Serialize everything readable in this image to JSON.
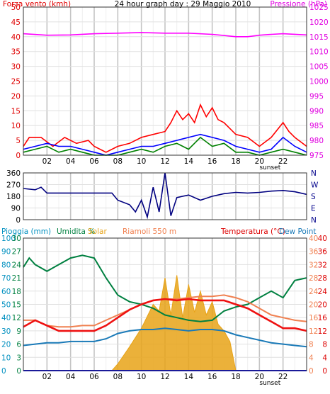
{
  "chart_data": [
    {
      "id": "wind-pressure",
      "type": "line",
      "title": "24 hour graph day : 29 Maggio 2010",
      "left_axis_label": "Forza vento (kmh)",
      "right_axis_label": "Pressione (hPa)",
      "ylim_left": [
        0,
        50
      ],
      "ylim_right": [
        975,
        1025
      ],
      "left_ticks": [
        0,
        5,
        10,
        15,
        20,
        25,
        30,
        35,
        40,
        45,
        50
      ],
      "right_ticks": [
        975,
        980,
        985,
        990,
        995,
        1000,
        1005,
        1010,
        1015,
        1020,
        1025
      ],
      "x_ticks": [
        "02",
        "04",
        "06",
        "08",
        "10",
        "12",
        "14",
        "16",
        "18",
        "20",
        "22"
      ],
      "x_range_hours": [
        0,
        24
      ],
      "annotation": "sunset",
      "annotation_hour": 20.9,
      "series": [
        {
          "axis": "right",
          "color": "#ff00ff",
          "x": [
            0,
            2,
            4,
            6,
            8,
            10,
            12,
            14,
            16,
            17,
            18,
            19,
            20,
            21,
            22,
            24
          ],
          "values": [
            1016,
            1015.5,
            1015.6,
            1016,
            1016.2,
            1016.4,
            1016.2,
            1016.2,
            1015.8,
            1015.4,
            1015,
            1015,
            1015.5,
            1015.8,
            1016,
            1015.6
          ]
        },
        {
          "axis": "left",
          "color": "#ff0000",
          "x": [
            0,
            0.5,
            1.5,
            2.5,
            3.5,
            4.5,
            5.5,
            6,
            7,
            8,
            9,
            10,
            11,
            12,
            12.5,
            13,
            13.5,
            14,
            14.5,
            15,
            15.5,
            16,
            16.5,
            17,
            17.5,
            18,
            19,
            20,
            21,
            22,
            22.5,
            23,
            24
          ],
          "values": [
            3,
            6,
            6,
            3,
            6,
            4,
            5,
            3,
            1,
            3,
            4,
            6,
            7,
            8,
            11,
            15,
            12,
            14,
            11,
            17,
            13,
            16,
            12,
            11,
            9,
            7,
            6,
            3,
            6,
            11,
            8,
            6,
            3
          ]
        },
        {
          "axis": "left",
          "color": "#0000ff",
          "x": [
            0,
            1,
            2,
            3,
            4,
            5,
            6,
            7,
            8,
            9,
            10,
            11,
            12,
            13,
            14,
            15,
            16,
            17,
            18,
            19,
            20,
            21,
            22,
            23,
            24
          ],
          "values": [
            2,
            3,
            4,
            3,
            3,
            2,
            1,
            0,
            1,
            2,
            3,
            3,
            4,
            5,
            6,
            7,
            6,
            5,
            3,
            2,
            1,
            2,
            6,
            3,
            1
          ]
        },
        {
          "axis": "left",
          "color": "#008000",
          "x": [
            0,
            1,
            2,
            3,
            4,
            5,
            6,
            7,
            8,
            9,
            10,
            11,
            12,
            13,
            14,
            15,
            16,
            17,
            18,
            19,
            20,
            21,
            22,
            23,
            24
          ],
          "values": [
            1,
            2,
            3,
            1,
            2,
            1,
            0,
            0,
            0,
            1,
            2,
            1,
            3,
            4,
            2,
            6,
            3,
            4,
            1,
            1,
            0,
            1,
            2,
            1,
            0
          ]
        }
      ]
    },
    {
      "id": "wind-direction",
      "type": "line",
      "left_ticks": [
        0,
        90,
        180,
        270,
        360
      ],
      "right_labels": [
        "N",
        "W",
        "S",
        "E",
        "N"
      ],
      "ylim": [
        0,
        360
      ],
      "x_range_hours": [
        0,
        24
      ],
      "series": [
        {
          "color": "#000080",
          "x": [
            0,
            1,
            1.5,
            2,
            3,
            4,
            5,
            6,
            7,
            7.5,
            8,
            9,
            9.5,
            10,
            10.5,
            11,
            11.5,
            12,
            12.5,
            13,
            14,
            15,
            16,
            17,
            18,
            19,
            20,
            21,
            22,
            23,
            24
          ],
          "values": [
            240,
            230,
            250,
            205,
            205,
            205,
            205,
            205,
            205,
            205,
            150,
            115,
            60,
            150,
            20,
            250,
            60,
            360,
            30,
            170,
            190,
            150,
            180,
            200,
            210,
            205,
            210,
            220,
            225,
            215,
            195
          ]
        }
      ]
    },
    {
      "id": "rain-temp-solar",
      "type": "line",
      "legend": [
        "Pioggia (mm)",
        "Umidita %",
        "Solar",
        "Riamoli 550 m",
        "Temperatura (°C)",
        "Dew Point"
      ],
      "left_ticks_rain": [
        0,
        10,
        20,
        30,
        40,
        50,
        60,
        70,
        80,
        90,
        100
      ],
      "left_ticks_humidity": [
        0,
        3,
        6,
        9,
        12,
        15,
        18,
        21,
        24,
        27,
        30
      ],
      "right_ticks_temp_inner": [
        0,
        4,
        8,
        12,
        16,
        20,
        24,
        28,
        32,
        36,
        40
      ],
      "right_ticks_temp_outer": [
        0,
        4,
        8,
        12,
        16,
        20,
        24,
        28,
        32,
        36,
        40
      ],
      "ylim": [
        0,
        100
      ],
      "x_ticks": [
        "02",
        "04",
        "06",
        "08",
        "10",
        "12",
        "14",
        "16",
        "18",
        "20",
        "22"
      ],
      "x_range_hours": [
        0,
        24
      ],
      "annotation": "sunset",
      "annotation_hour": 20.9,
      "series": [
        {
          "name": "Solar",
          "type": "area",
          "color": "#e8a317",
          "x": [
            0,
            7.5,
            8,
            9,
            10,
            11,
            11.5,
            12,
            12.5,
            13,
            13.5,
            14,
            14.5,
            15,
            15.5,
            16,
            16.5,
            17,
            17.5,
            18,
            24
          ],
          "values": [
            0,
            0,
            5,
            18,
            32,
            50,
            45,
            70,
            42,
            72,
            40,
            65,
            44,
            60,
            42,
            52,
            35,
            30,
            22,
            0,
            0
          ]
        },
        {
          "name": "Umidita %",
          "color": "#008040",
          "x": [
            0,
            0.5,
            1,
            2,
            3,
            4,
            5,
            6,
            7,
            8,
            9,
            10,
            11,
            12,
            13,
            14,
            15,
            16,
            17,
            18,
            19,
            20,
            21,
            22,
            23,
            24
          ],
          "values": [
            78,
            85,
            80,
            75,
            80,
            85,
            87,
            85,
            70,
            57,
            52,
            50,
            47,
            42,
            40,
            38,
            37,
            38,
            45,
            48,
            50,
            55,
            60,
            55,
            68,
            70
          ]
        },
        {
          "name": "Riamoli 550 m",
          "color": "#f08050",
          "x": [
            0,
            1,
            2,
            3,
            4,
            5,
            6,
            7,
            8,
            9,
            10,
            11,
            12,
            13,
            14,
            15,
            16,
            17,
            18,
            19,
            20,
            21,
            22,
            23,
            24
          ],
          "values": [
            38,
            38,
            34,
            33,
            33,
            34,
            34,
            38,
            42,
            46,
            50,
            53,
            54,
            54,
            55,
            56,
            56,
            57,
            55,
            52,
            47,
            42,
            40,
            38,
            37
          ]
        },
        {
          "name": "Temperatura (°C)",
          "color": "#ee1111",
          "x": [
            0,
            1,
            2,
            3,
            4,
            5,
            6,
            7,
            8,
            9,
            10,
            11,
            12,
            13,
            14,
            15,
            16,
            17,
            18,
            19,
            20,
            21,
            22,
            23,
            24
          ],
          "values": [
            33,
            38,
            34,
            30,
            30,
            30,
            30,
            34,
            40,
            46,
            50,
            53,
            54,
            53,
            54,
            53,
            53,
            53,
            50,
            47,
            42,
            37,
            32,
            32,
            30
          ]
        },
        {
          "name": "Dew Point",
          "color": "#1a7ab8",
          "x": [
            0,
            1,
            2,
            3,
            4,
            5,
            6,
            7,
            8,
            9,
            10,
            11,
            12,
            13,
            14,
            15,
            16,
            17,
            18,
            19,
            20,
            21,
            22,
            23,
            24
          ],
          "values": [
            19,
            20,
            21,
            21,
            22,
            22,
            22,
            24,
            28,
            30,
            31,
            31,
            32,
            31,
            30,
            31,
            31,
            30,
            27,
            25,
            23,
            21,
            20,
            19,
            18
          ]
        },
        {
          "name": "Pioggia (mm)",
          "color": "#0000ff",
          "x": [
            0,
            24
          ],
          "values": [
            0,
            0
          ]
        }
      ]
    }
  ]
}
